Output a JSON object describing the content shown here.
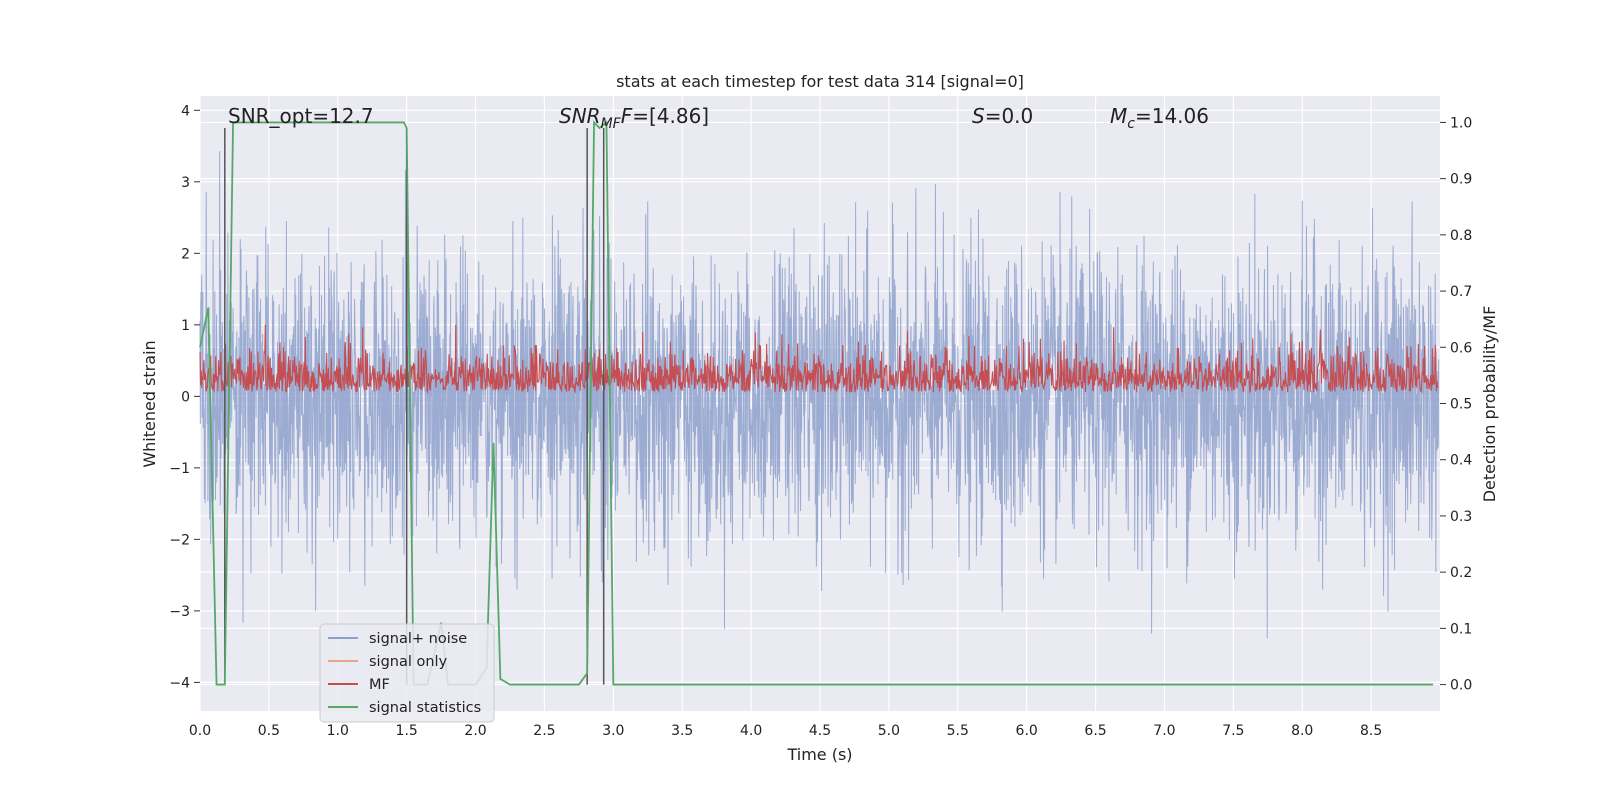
{
  "chart_data": {
    "type": "line",
    "title": "stats at each timestep for test data 314 [signal=0]",
    "xlabel": "Time (s)",
    "ylabel_left": "Whitened strain",
    "ylabel_right": "Detection probability/MF",
    "xlim": [
      0.0,
      9.0
    ],
    "ylim_left": [
      -4.4,
      4.2
    ],
    "ylim_right": [
      -0.047,
      1.047
    ],
    "x_ticks": [
      "0.0",
      "0.5",
      "1.0",
      "1.5",
      "2.0",
      "2.5",
      "3.0",
      "3.5",
      "4.0",
      "4.5",
      "5.0",
      "5.5",
      "6.0",
      "6.5",
      "7.0",
      "7.5",
      "8.0",
      "8.5"
    ],
    "y_ticks_left": [
      "4",
      "3",
      "2",
      "1",
      "0",
      "−1",
      "−2",
      "−3",
      "−4"
    ],
    "y_ticks_right": [
      "1.0",
      "0.9",
      "0.8",
      "0.7",
      "0.6",
      "0.5",
      "0.4",
      "0.3",
      "0.2",
      "0.1",
      "0.0"
    ],
    "grid": true,
    "legend_position": "lower-left",
    "annotations": {
      "snr_opt": "SNR_opt=12.7",
      "snr_mf_main": "SNR",
      "snr_mf_sub": "MF",
      "snr_mf_value": "=[4.86]",
      "s_var": "S",
      "s_value": "=0.0",
      "mc_var": "M",
      "mc_sub": "c",
      "mc_value": "=14.06"
    },
    "series": [
      {
        "name": "signal+ noise",
        "axis": "left",
        "color": "#8da0cb",
        "description_range": [
          -4.0,
          3.9
        ],
        "note": "dense noise trace spanning full time range"
      },
      {
        "name": "signal only",
        "axis": "left",
        "color": "#e8a58b",
        "values": []
      },
      {
        "name": "MF",
        "axis": "right",
        "color": "#c44e52",
        "typical_range": [
          0.52,
          0.62
        ]
      },
      {
        "name": "signal statistics",
        "axis": "right",
        "color": "#55a868",
        "x": [
          0.0,
          0.06,
          0.12,
          0.18,
          0.24,
          0.3,
          1.48,
          1.5,
          1.55,
          1.65,
          1.75,
          1.8,
          2.0,
          2.08,
          2.13,
          2.18,
          2.25,
          2.75,
          2.81,
          2.86,
          2.9,
          2.95,
          3.0,
          8.95
        ],
        "y": [
          0.6,
          0.67,
          0.0,
          0.0,
          1.0,
          1.0,
          1.0,
          0.99,
          0.0,
          0.0,
          0.11,
          0.0,
          0.0,
          0.03,
          0.43,
          0.01,
          0.0,
          0.0,
          0.02,
          1.0,
          0.99,
          1.0,
          0.0,
          0.0
        ]
      }
    ],
    "vertical_markers": [
      0.18,
      1.5,
      2.81,
      2.93
    ]
  }
}
